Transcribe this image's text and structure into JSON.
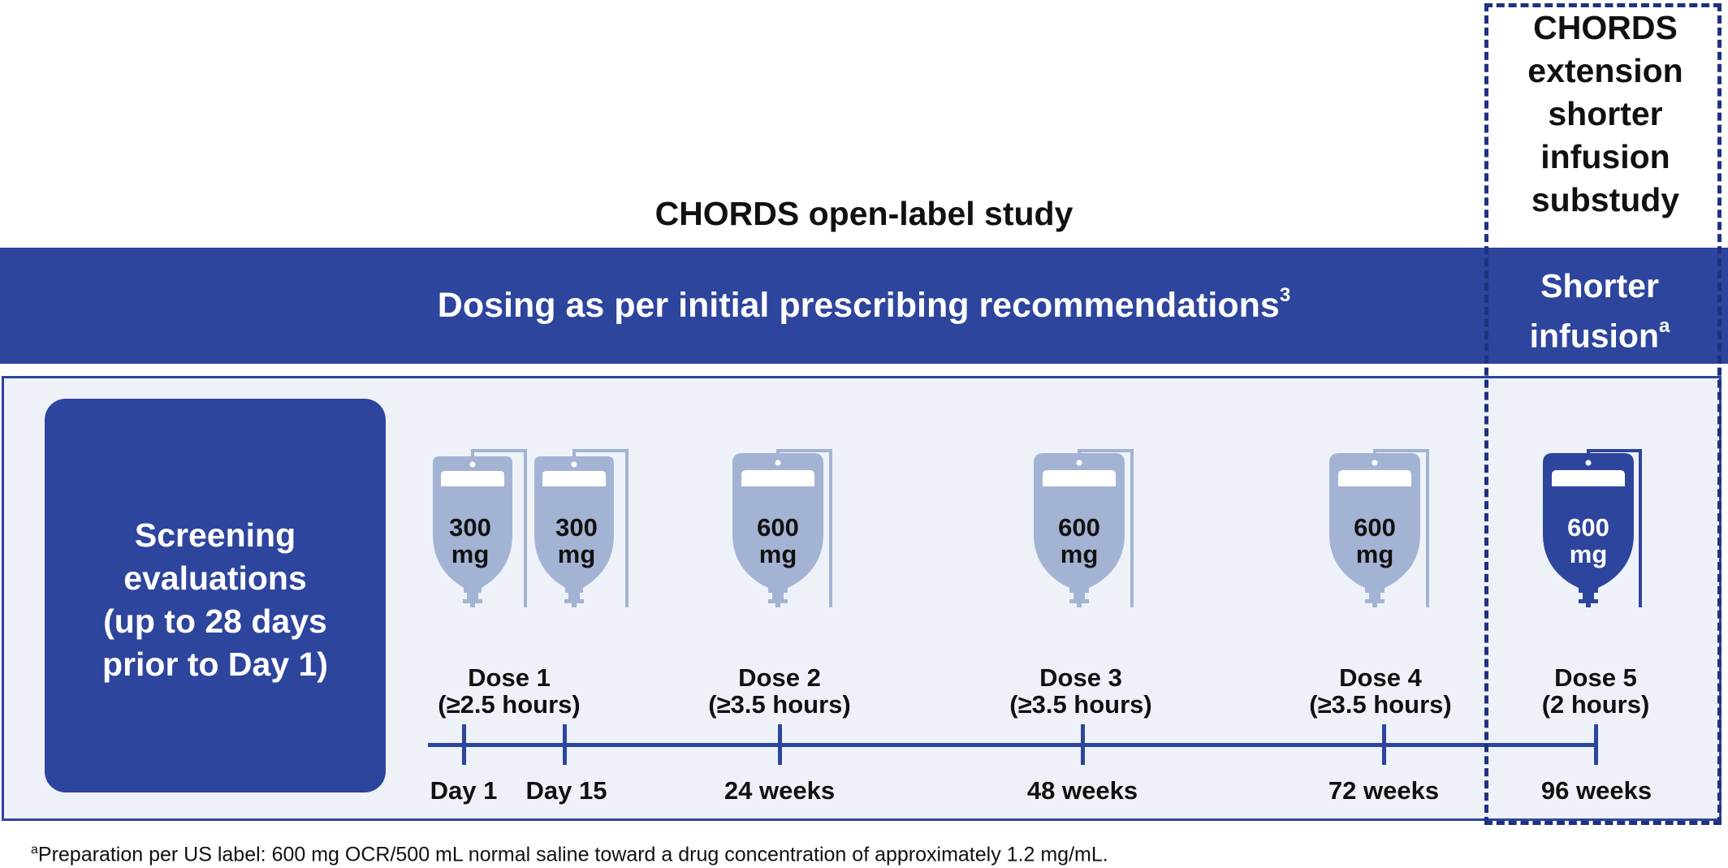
{
  "header": {
    "study_title": "CHORDS open-label study",
    "extension_title_lines": [
      "CHORDS",
      "extension",
      "shorter",
      "infusion",
      "substudy"
    ]
  },
  "band": {
    "text": "Dosing as per initial prescribing recommendations",
    "text_superscript": "3",
    "shorter_line1": "Shorter",
    "shorter_line2": "infusion",
    "shorter_superscript": "a"
  },
  "screening": {
    "lines": [
      "Screening",
      "evaluations",
      "(up to 28 days",
      "prior to Day 1)"
    ]
  },
  "bags": [
    {
      "amount": "300",
      "unit": "mg",
      "highlight": false
    },
    {
      "amount": "300",
      "unit": "mg",
      "highlight": false
    },
    {
      "amount": "600",
      "unit": "mg",
      "highlight": false
    },
    {
      "amount": "600",
      "unit": "mg",
      "highlight": false
    },
    {
      "amount": "600",
      "unit": "mg",
      "highlight": false
    },
    {
      "amount": "600",
      "unit": "mg",
      "highlight": true
    }
  ],
  "doses": [
    {
      "name": "Dose 1",
      "duration": "(≥2.5 hours)"
    },
    {
      "name": "Dose 2",
      "duration": "(≥3.5 hours)"
    },
    {
      "name": "Dose 3",
      "duration": "(≥3.5 hours)"
    },
    {
      "name": "Dose 4",
      "duration": "(≥3.5 hours)"
    },
    {
      "name": "Dose 5",
      "duration": "(2 hours)"
    }
  ],
  "timepoints": [
    "Day 1",
    "Day 15",
    "24 weeks",
    "48 weeks",
    "72 weeks",
    "96 weeks"
  ],
  "footnote": {
    "marker": "a",
    "text": "Preparation per US label: 600 mg OCR/500 mL normal saline toward a drug concentration of approximately 1.2 mg/mL."
  },
  "colors": {
    "dark_blue": "#2e459d",
    "light_bag": "#a3b3d3",
    "panel_bg": "#eef2f8",
    "dashed_border": "#1f3280"
  }
}
